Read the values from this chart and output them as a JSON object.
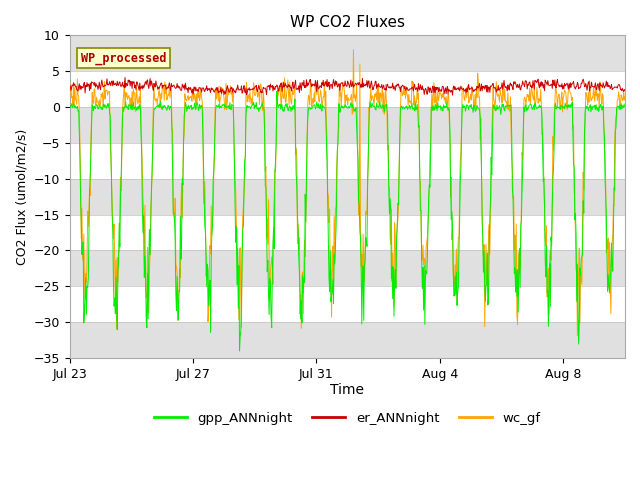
{
  "title": "WP CO2 Fluxes",
  "xlabel": "Time",
  "ylabel_display": "CO2 Flux (umol/m2/s)",
  "ylim": [
    -35,
    10
  ],
  "yticks": [
    -35,
    -30,
    -25,
    -20,
    -15,
    -10,
    -5,
    0,
    5,
    10
  ],
  "x_labels": [
    "Jul 23",
    "Jul 27",
    "Jul 31",
    "Aug 4",
    "Aug 8"
  ],
  "x_tick_days": [
    0,
    4,
    8,
    12,
    16
  ],
  "n_days": 18,
  "points_per_day": 48,
  "legend_entries": [
    "gpp_ANNnight",
    "er_ANNnight",
    "wc_gf"
  ],
  "legend_colors": [
    "#00ee00",
    "#cc0000",
    "#ffa500"
  ],
  "watermark_text": "WP_processed",
  "watermark_color": "#aa0000",
  "watermark_bg": "#ffffcc",
  "watermark_border": "#888800",
  "plot_bg": "#ffffff",
  "fig_bg": "#ffffff",
  "grid_band_color": "#e0e0e0",
  "line_color_gpp": "#00ee00",
  "line_color_er": "#cc0000",
  "line_color_wc": "#ffa500",
  "line_width": 0.7,
  "seed": 42
}
